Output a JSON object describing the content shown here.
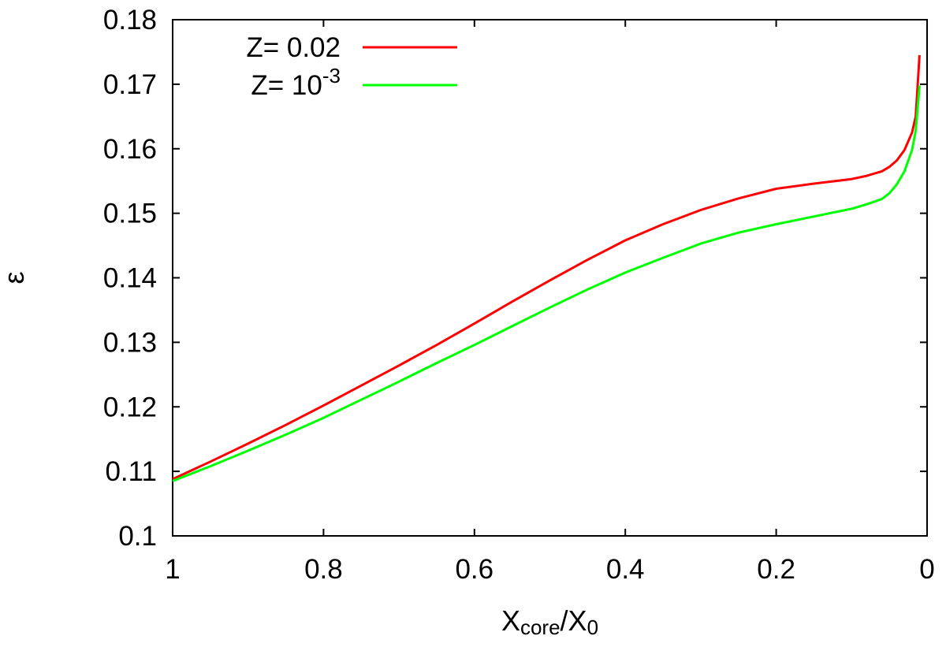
{
  "chart_data": {
    "type": "line",
    "title": "",
    "xlabel": {
      "main": "X",
      "sub1": "core",
      "sep": "/X",
      "sub2": "0"
    },
    "ylabel": "ε",
    "xlim": [
      1,
      0
    ],
    "ylim": [
      0.1,
      0.18
    ],
    "x_reversed": true,
    "grid": false,
    "legend_position": "top-left",
    "x_ticks": [
      1,
      0.8,
      0.6,
      0.4,
      0.2,
      0
    ],
    "x_tick_labels": [
      "1",
      "0.8",
      "0.6",
      "0.4",
      "0.2",
      "0"
    ],
    "y_ticks": [
      0.1,
      0.11,
      0.12,
      0.13,
      0.14,
      0.15,
      0.16,
      0.17,
      0.18
    ],
    "y_tick_labels": [
      "0.1",
      "0.11",
      "0.12",
      "0.13",
      "0.14",
      "0.15",
      "0.16",
      "0.17",
      "0.18"
    ],
    "series": [
      {
        "name": "Z= 0.02",
        "legend": {
          "base": "Z= 0.02",
          "sup": ""
        },
        "color": "#ff0000",
        "x": [
          1.0,
          0.95,
          0.9,
          0.85,
          0.8,
          0.75,
          0.7,
          0.65,
          0.6,
          0.55,
          0.5,
          0.45,
          0.4,
          0.35,
          0.3,
          0.25,
          0.2,
          0.15,
          0.1,
          0.08,
          0.06,
          0.05,
          0.04,
          0.03,
          0.02,
          0.015,
          0.01
        ],
        "y": [
          0.1088,
          0.1115,
          0.1143,
          0.1172,
          0.1202,
          0.1233,
          0.1264,
          0.1296,
          0.1329,
          0.1363,
          0.1396,
          0.1428,
          0.1458,
          0.1483,
          0.1505,
          0.1523,
          0.1538,
          0.1546,
          0.1553,
          0.1558,
          0.1565,
          0.1572,
          0.1582,
          0.1598,
          0.1625,
          0.165,
          0.1745
        ]
      },
      {
        "name": "Z= 10^-3",
        "legend": {
          "base": "Z= 10",
          "sup": "-3"
        },
        "color": "#00ff00",
        "x": [
          1.0,
          0.95,
          0.9,
          0.85,
          0.8,
          0.75,
          0.7,
          0.65,
          0.6,
          0.55,
          0.5,
          0.45,
          0.4,
          0.35,
          0.3,
          0.25,
          0.2,
          0.15,
          0.1,
          0.08,
          0.06,
          0.05,
          0.04,
          0.03,
          0.02,
          0.015,
          0.01
        ],
        "y": [
          0.1085,
          0.1108,
          0.1132,
          0.1157,
          0.1183,
          0.1211,
          0.1239,
          0.1268,
          0.1296,
          0.1325,
          0.1354,
          0.1382,
          0.1408,
          0.1431,
          0.1453,
          0.147,
          0.1483,
          0.1495,
          0.1507,
          0.1514,
          0.1522,
          0.1531,
          0.1545,
          0.1565,
          0.1598,
          0.1628,
          0.1698
        ]
      }
    ]
  }
}
